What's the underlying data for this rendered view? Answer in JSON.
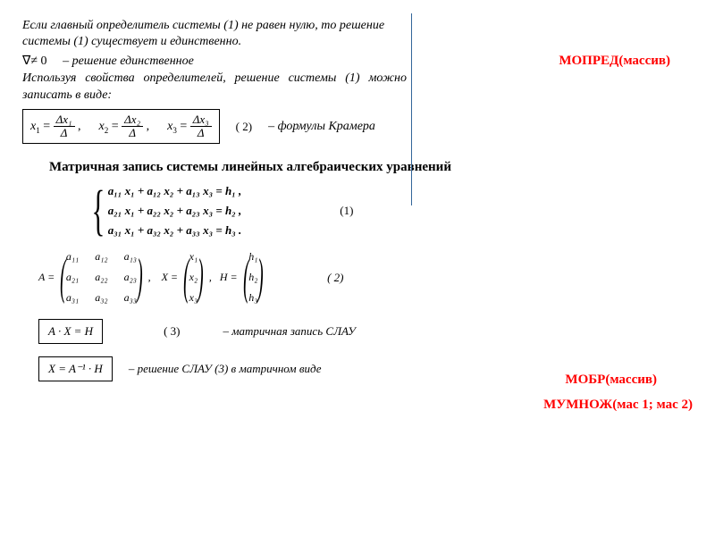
{
  "theorem": "Если главный определитель системы (1) не равен нулю, то решение системы (1) существует и единственно.",
  "unique_det": "∇≠ 0",
  "unique_text": "– решение единственное",
  "using_text": "Используя свойства определителей, решение системы (1) можно записать в виде:",
  "mopred": "МОПРЕД(массив)",
  "cramer": {
    "x1": "x",
    "s1": "1",
    "d1_num": "Δx₁",
    "d1_den": "Δ",
    "x2": "x",
    "s2": "2",
    "d2_num": "Δx₂",
    "d2_den": "Δ",
    "x3": "x",
    "s3": "3",
    "d3_num": "Δx₃",
    "d3_den": "Δ"
  },
  "cramer_label": "( 2)",
  "cramer_note": "– формулы Крамера",
  "section_title": "Матричная запись системы линейных алгебраических уравнений",
  "system": {
    "r1": "a₁₁ x₁ + a₁₂ x₂ + a₁₃ x₃ = h₁ ,",
    "r2": "a₂₁ x₁ + a₂₂ x₂ + a₂₃ x₃ = h₂ ,",
    "r3": "a₃₁ x₁ + a₃₂ x₂ + a₃₃ x₃ = h₃ ."
  },
  "system_label": "(1)",
  "A_label": "A =",
  "A": [
    [
      "a₁₁",
      "a₁₂",
      "a₁₃"
    ],
    [
      "a₂₁",
      "a₂₂",
      "a₂₃"
    ],
    [
      "a₃₁",
      "a₃₂",
      "a₃₃"
    ]
  ],
  "X_label": ",    X =",
  "X": [
    "x₁",
    "x₂",
    "x₃"
  ],
  "H_label": ",   H =",
  "H": [
    "h₁",
    "h₂",
    "h₃"
  ],
  "matrices_label": "( 2)",
  "mobr": "МОБР(массив)",
  "mumnozh": "МУМНОЖ(мас 1; мас 2)",
  "eq3": "A · X = H",
  "eq3_label": "( 3)",
  "eq3_note": "– матричная запись СЛАУ",
  "eq4": "X = A⁻¹ · H",
  "eq4_note": "– решение СЛАУ (3) в матричном виде",
  "colors": {
    "red": "#ff0000",
    "divider": "#336699",
    "bg": "#ffffff",
    "text": "#000000"
  }
}
